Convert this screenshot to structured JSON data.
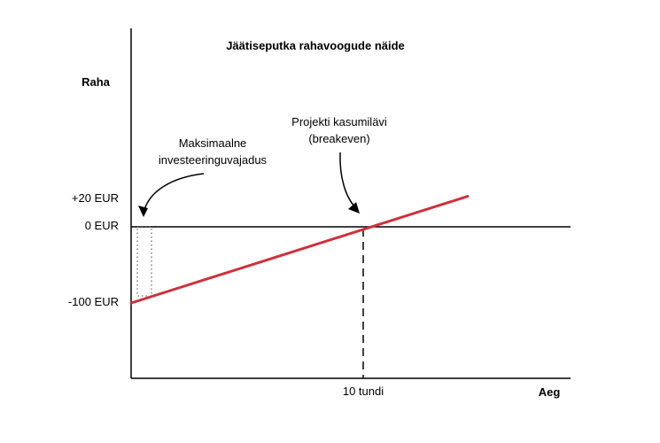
{
  "chart_data": {
    "type": "line",
    "title": "Jäätiseputka rahavoogude näide",
    "ylabel": "Raha",
    "xlabel": "Aeg",
    "y_ticks": [
      {
        "label": "+20 EUR",
        "value": 20
      },
      {
        "label": "0 EUR",
        "value": 0
      },
      {
        "label": "-100 EUR",
        "value": -100
      }
    ],
    "x_ticks": [
      {
        "label": "10 tundi",
        "value": 10
      }
    ],
    "series": [
      {
        "color": "#d0303c",
        "points": [
          [
            0,
            -100
          ],
          [
            14.5,
            40
          ]
        ]
      }
    ],
    "breakeven": {
      "x": 10,
      "y": 0
    },
    "annotations": {
      "max_investment": [
        "Maksimaalne",
        "investeeringuvajadus"
      ],
      "breakeven": [
        "Projekti kasumilävi",
        "(breakeven)"
      ]
    },
    "grid": false,
    "legend": "none"
  }
}
